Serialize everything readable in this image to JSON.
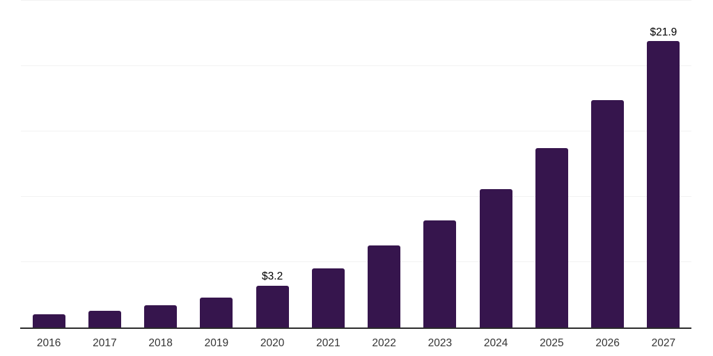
{
  "chart_data": {
    "type": "bar",
    "categories": [
      "2016",
      "2017",
      "2018",
      "2019",
      "2020",
      "2021",
      "2022",
      "2023",
      "2024",
      "2025",
      "2026",
      "2027"
    ],
    "values": [
      1.0,
      1.3,
      1.7,
      2.3,
      3.2,
      4.5,
      6.3,
      8.2,
      10.6,
      13.7,
      17.4,
      21.9
    ],
    "data_labels": {
      "2020": "$3.2",
      "2027": "$21.9"
    },
    "title": "",
    "xlabel": "",
    "ylabel": "",
    "ylim": [
      0,
      25
    ],
    "gridline_step": 5,
    "grid": true,
    "legend": false,
    "y_axis_labels_visible": false,
    "colors": {
      "bar": "#36154d",
      "axis_line": "#2b2b2b",
      "gridline": "#f2f2f2",
      "data_label": "#000000",
      "tick_label": "#333333",
      "background": "#ffffff"
    }
  }
}
